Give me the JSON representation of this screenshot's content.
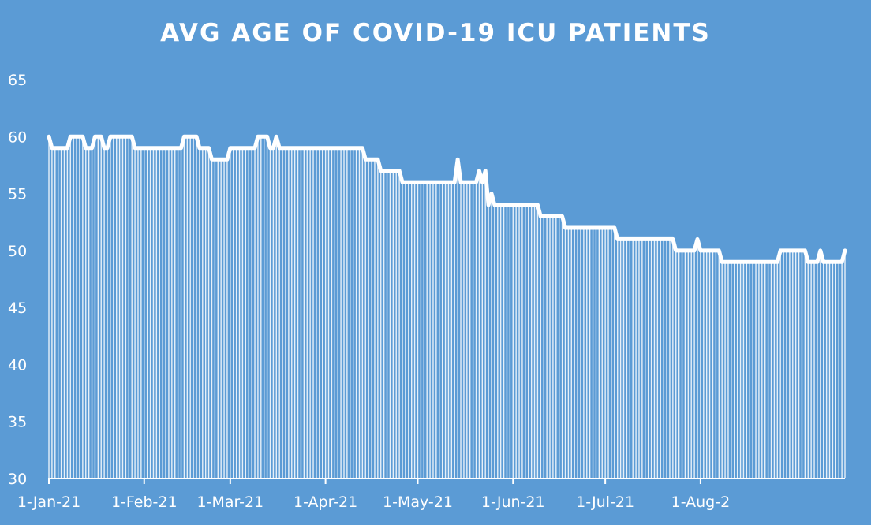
{
  "colors": {
    "background": "#5b9bd5",
    "series": "#ffffff"
  },
  "chart_data": {
    "type": "line",
    "title": "AVG AGE OF COVID-19 ICU PATIENTS",
    "xlabel": "",
    "ylabel": "",
    "x_start": "2021-01-01",
    "ylim": [
      30,
      65
    ],
    "y_ticks": [
      "30",
      "35",
      "40",
      "45",
      "50",
      "55",
      "60",
      "65"
    ],
    "x_ticks": [
      {
        "date": "2021-01-01",
        "label": "1-Jan-21"
      },
      {
        "date": "2021-02-01",
        "label": "1-Feb-21"
      },
      {
        "date": "2021-03-01",
        "label": "1-Mar-21"
      },
      {
        "date": "2021-04-01",
        "label": "1-Apr-21"
      },
      {
        "date": "2021-05-01",
        "label": "1-May-21"
      },
      {
        "date": "2021-06-01",
        "label": "1-Jun-21"
      },
      {
        "date": "2021-07-01",
        "label": "1-Jul-21"
      },
      {
        "date": "2021-08-01",
        "label": "1-Aug-2"
      }
    ],
    "grid": false,
    "legend": "none",
    "series": [
      {
        "values": [
          60,
          59,
          59,
          59,
          59,
          59,
          59,
          60,
          60,
          60,
          60,
          60,
          59,
          59,
          59,
          60,
          60,
          60,
          59,
          59,
          60,
          60,
          60,
          60,
          60,
          60,
          60,
          60,
          59,
          59,
          59,
          59,
          59,
          59,
          59,
          59,
          59,
          59,
          59,
          59,
          59,
          59,
          59,
          59,
          60,
          60,
          60,
          60,
          60,
          59,
          59,
          59,
          59,
          58,
          58,
          58,
          58,
          58,
          58,
          59,
          59,
          59,
          59,
          59,
          59,
          59,
          59,
          59,
          60,
          60,
          60,
          60,
          59,
          59,
          60,
          59,
          59,
          59,
          59,
          59,
          59,
          59,
          59,
          59,
          59,
          59,
          59,
          59,
          59,
          59,
          59,
          59,
          59,
          59,
          59,
          59,
          59,
          59,
          59,
          59,
          59,
          59,
          59,
          58,
          58,
          58,
          58,
          58,
          57,
          57,
          57,
          57,
          57,
          57,
          57,
          56,
          56,
          56,
          56,
          56,
          56,
          56,
          56,
          56,
          56,
          56,
          56,
          56,
          56,
          56,
          56,
          56,
          56,
          58,
          56,
          56,
          56,
          56,
          56,
          56,
          57,
          56,
          57,
          54,
          55,
          54,
          54,
          54,
          54,
          54,
          54,
          54,
          54,
          54,
          54,
          54,
          54,
          54,
          54,
          54,
          53,
          53,
          53,
          53,
          53,
          53,
          53,
          53,
          52,
          52,
          52,
          52,
          52,
          52,
          52,
          52,
          52,
          52,
          52,
          52,
          52,
          52,
          52,
          52,
          52,
          51,
          51,
          51,
          51,
          51,
          51,
          51,
          51,
          51,
          51,
          51,
          51,
          51,
          51,
          51,
          51,
          51,
          51,
          51,
          50,
          50,
          50,
          50,
          50,
          50,
          50,
          51,
          50,
          50,
          50,
          50,
          50,
          50,
          50,
          49,
          49,
          49,
          49,
          49,
          49,
          49,
          49,
          49,
          49,
          49,
          49,
          49,
          49,
          49,
          49,
          49,
          49,
          49,
          50,
          50,
          50,
          50,
          50,
          50,
          50,
          50,
          50,
          49,
          49,
          49,
          49,
          50,
          49,
          49,
          49,
          49,
          49,
          49,
          49,
          50
        ]
      }
    ]
  }
}
